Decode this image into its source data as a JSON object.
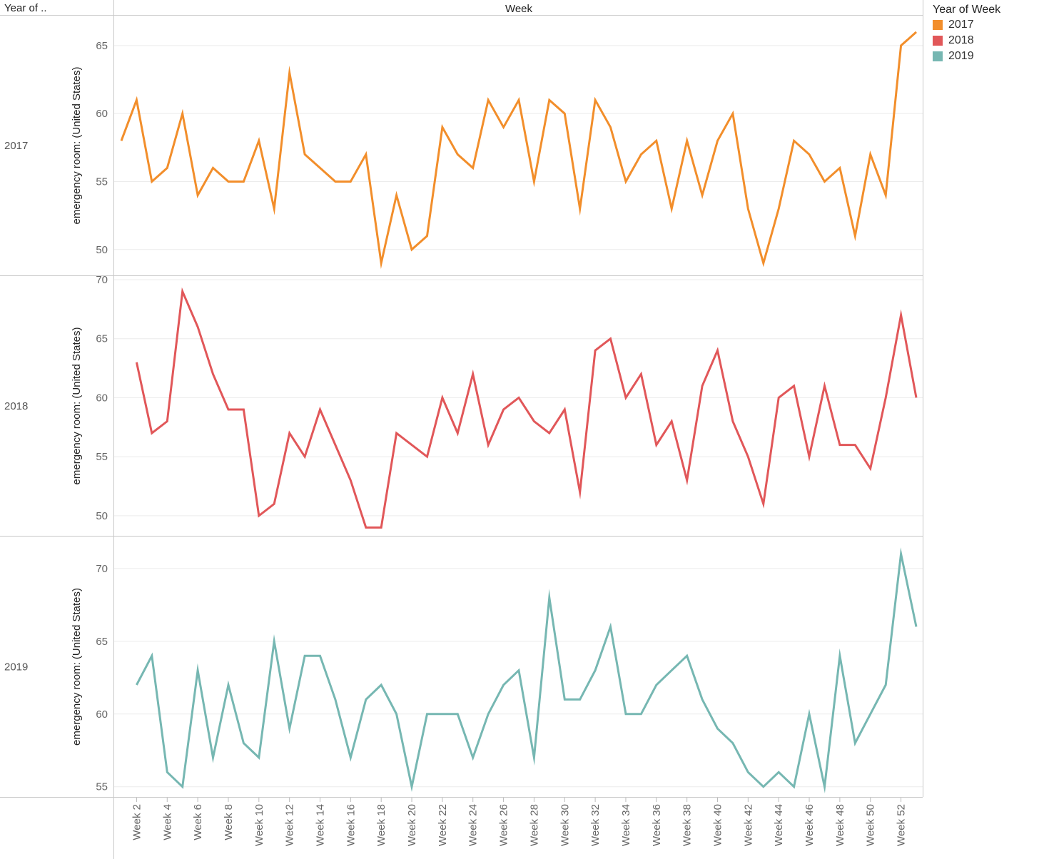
{
  "header": {
    "row_header": "Year of ..",
    "column_header": "Week"
  },
  "legend": {
    "title": "Year of Week",
    "items": [
      {
        "label": "2017",
        "color": "#f28e2b"
      },
      {
        "label": "2018",
        "color": "#e15759"
      },
      {
        "label": "2019",
        "color": "#76b7b2"
      }
    ]
  },
  "chart_data": {
    "type": "line",
    "ylabel": "emergency room: (United States)",
    "x_tick_labels": [
      "Week 2",
      "Week 4",
      "Week 6",
      "Week 8",
      "Week 10",
      "Week 12",
      "Week 14",
      "Week 16",
      "Week 18",
      "Week 20",
      "Week 22",
      "Week 24",
      "Week 26",
      "Week 28",
      "Week 30",
      "Week 32",
      "Week 34",
      "Week 36",
      "Week 38",
      "Week 40",
      "Week 42",
      "Week 44",
      "Week 46",
      "Week 48",
      "Week 50",
      "Week 52"
    ],
    "x_range": [
      1,
      53
    ],
    "grid": true,
    "panels": [
      {
        "year": "2017",
        "color": "#f28e2b",
        "yticks": [
          50,
          55,
          60,
          65
        ],
        "ylim": [
          48.1,
          67.2
        ],
        "start_week": 1,
        "values": [
          58,
          61,
          55,
          56,
          60,
          54,
          56,
          55,
          55,
          58,
          53,
          63,
          57,
          56,
          55,
          55,
          57,
          49,
          54,
          50,
          51,
          59,
          57,
          56,
          61,
          59,
          61,
          55,
          61,
          60,
          53,
          61,
          59,
          55,
          57,
          58,
          53,
          58,
          54,
          58,
          60,
          53,
          49,
          53,
          58,
          57,
          55,
          56,
          51,
          57,
          54,
          65,
          66
        ]
      },
      {
        "year": "2018",
        "color": "#e15759",
        "yticks": [
          50,
          55,
          60,
          65,
          70
        ],
        "ylim": [
          48.3,
          70.3
        ],
        "start_week": 2,
        "values": [
          63,
          57,
          58,
          69,
          66,
          62,
          59,
          59,
          50,
          51,
          57,
          55,
          59,
          56,
          53,
          49,
          49,
          57,
          56,
          55,
          60,
          57,
          62,
          56,
          59,
          60,
          58,
          57,
          59,
          52,
          64,
          65,
          60,
          62,
          56,
          58,
          53,
          61,
          64,
          58,
          55,
          51,
          60,
          61,
          55,
          61,
          56,
          56,
          54,
          60,
          67,
          60
        ]
      },
      {
        "year": "2019",
        "color": "#76b7b2",
        "yticks": [
          55,
          60,
          65,
          70
        ],
        "ylim": [
          54.3,
          72.2
        ],
        "start_week": 2,
        "values": [
          62,
          64,
          56,
          55,
          63,
          57,
          62,
          58,
          57,
          65,
          59,
          64,
          64,
          61,
          57,
          61,
          62,
          60,
          55,
          60,
          60,
          60,
          57,
          60,
          62,
          63,
          57,
          68,
          61,
          61,
          63,
          66,
          60,
          60,
          62,
          63,
          64,
          61,
          59,
          58,
          56,
          55,
          56,
          55,
          60,
          55,
          64,
          58,
          60,
          62,
          71,
          66
        ]
      }
    ]
  }
}
